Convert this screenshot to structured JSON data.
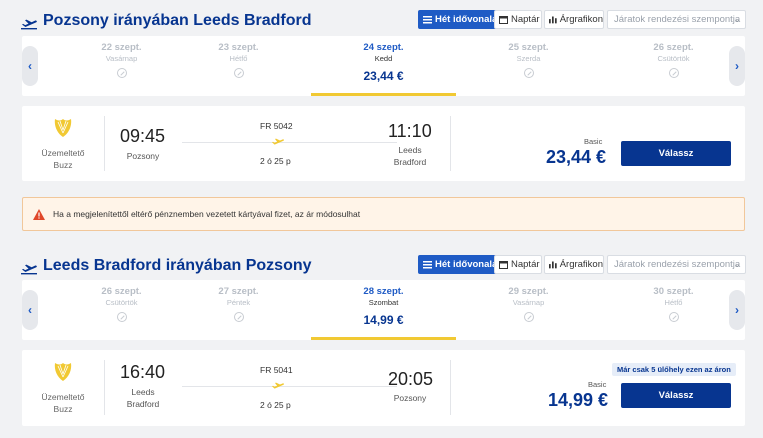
{
  "colors": {
    "brand_blue": "#073590",
    "accent_blue": "#1f5bc5",
    "accent_yellow": "#f1c933",
    "warning_bg": "#fff4e8",
    "warning_red": "#e0472a"
  },
  "view_controls": {
    "week_label": "Hét idővonala",
    "calendar_label": "Naptár",
    "chart_label": "Árgrafikon",
    "sort_placeholder": "Járatok rendezési szempontja"
  },
  "outbound": {
    "title": "Pozsony irányában Leeds Bradford",
    "days": [
      {
        "date": "22 szept.",
        "weekday": "Vasárnap"
      },
      {
        "date": "23 szept.",
        "weekday": "Hétfő"
      },
      {
        "date": "24 szept.",
        "weekday": "Kedd",
        "price": "23,44 €"
      },
      {
        "date": "25 szept.",
        "weekday": "Szerda"
      },
      {
        "date": "26 szept.",
        "weekday": "Csütörtök"
      }
    ],
    "flight": {
      "operator_label": "Üzemeltető",
      "operator_name": "Buzz",
      "depart_time": "09:45",
      "depart_city": "Pozsony",
      "flight_number": "FR 5042",
      "duration": "2 ó 25 p",
      "arrive_time": "11:10",
      "arrive_city_1": "Leeds",
      "arrive_city_2": "Bradford",
      "fare_type": "Basic",
      "price": "23,44 €",
      "select_label": "Válassz"
    }
  },
  "warning": {
    "text": "Ha a megjelenítettől eltérő pénznemben vezetett kártyával fizet, az ár módosulhat"
  },
  "inbound": {
    "title": "Leeds Bradford irányában Pozsony",
    "days": [
      {
        "date": "26 szept.",
        "weekday": "Csütörtök"
      },
      {
        "date": "27 szept.",
        "weekday": "Péntek"
      },
      {
        "date": "28 szept.",
        "weekday": "Szombat",
        "price": "14,99 €"
      },
      {
        "date": "29 szept.",
        "weekday": "Vasárnap"
      },
      {
        "date": "30 szept.",
        "weekday": "Hétfő"
      }
    ],
    "flight": {
      "operator_label": "Üzemeltető",
      "operator_name": "Buzz",
      "depart_time": "16:40",
      "depart_city_1": "Leeds",
      "depart_city_2": "Bradford",
      "flight_number": "FR 5041",
      "duration": "2 ó 25 p",
      "arrive_time": "20:05",
      "arrive_city": "Pozsony",
      "seats_left": "Már csak 5 ülőhely ezen az áron",
      "fare_type": "Basic",
      "price": "14,99 €",
      "select_label": "Válassz"
    }
  }
}
